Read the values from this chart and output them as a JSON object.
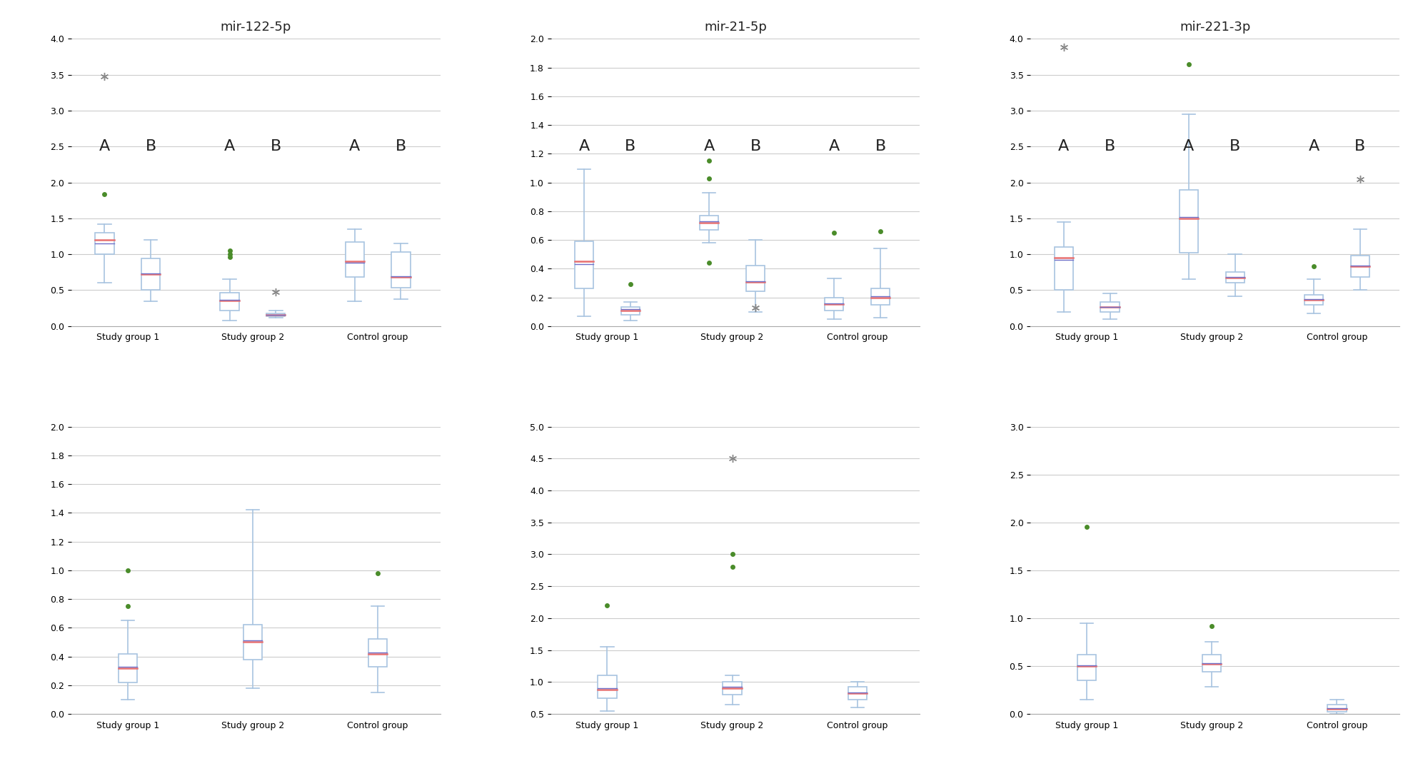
{
  "panels": [
    {
      "title": "mir-122-5p",
      "ylim": [
        0.0,
        4.0
      ],
      "yticks": [
        0.0,
        0.5,
        1.0,
        1.5,
        2.0,
        2.5,
        3.0,
        3.5,
        4.0
      ],
      "show_AB": true,
      "groups": [
        {
          "label": "Study group 1",
          "boxes": [
            {
              "name": "A",
              "q1": 1.0,
              "median": 1.2,
              "mean": 1.15,
              "q3": 1.3,
              "whislo": 0.6,
              "whishi": 1.42,
              "fliers_green": [
                1.84
              ],
              "fliers_gray": [
                3.48
              ]
            },
            {
              "name": "B",
              "q1": 0.5,
              "median": 0.72,
              "mean": 0.73,
              "q3": 0.94,
              "whislo": 0.35,
              "whishi": 1.2,
              "fliers_green": [],
              "fliers_gray": []
            }
          ]
        },
        {
          "label": "Study group 2",
          "boxes": [
            {
              "name": "A",
              "q1": 0.22,
              "median": 0.36,
              "mean": 0.37,
              "q3": 0.46,
              "whislo": 0.08,
              "whishi": 0.65,
              "fliers_green": [
                0.96,
                1.0,
                1.05
              ],
              "fliers_gray": []
            },
            {
              "name": "B",
              "q1": 0.135,
              "median": 0.155,
              "mean": 0.16,
              "q3": 0.175,
              "whislo": 0.115,
              "whishi": 0.22,
              "fliers_green": [],
              "fliers_gray": [
                0.47
              ]
            }
          ]
        },
        {
          "label": "Control group",
          "boxes": [
            {
              "name": "A",
              "q1": 0.68,
              "median": 0.9,
              "mean": 0.88,
              "q3": 1.17,
              "whislo": 0.35,
              "whishi": 1.35,
              "fliers_green": [],
              "fliers_gray": []
            },
            {
              "name": "B",
              "q1": 0.53,
              "median": 0.68,
              "mean": 0.69,
              "q3": 1.03,
              "whislo": 0.38,
              "whishi": 1.15,
              "fliers_green": [],
              "fliers_gray": []
            }
          ]
        }
      ]
    },
    {
      "title": "mir-21-5p",
      "ylim": [
        0.0,
        2.0
      ],
      "yticks": [
        0.0,
        0.2,
        0.4,
        0.6,
        0.8,
        1.0,
        1.2,
        1.4,
        1.6,
        1.8,
        2.0
      ],
      "show_AB": true,
      "groups": [
        {
          "label": "Study group 1",
          "boxes": [
            {
              "name": "A",
              "q1": 0.26,
              "median": 0.45,
              "mean": 0.43,
              "q3": 0.59,
              "whislo": 0.07,
              "whishi": 1.09,
              "fliers_green": [],
              "fliers_gray": []
            },
            {
              "name": "B",
              "q1": 0.08,
              "median": 0.11,
              "mean": 0.12,
              "q3": 0.135,
              "whislo": 0.04,
              "whishi": 0.17,
              "fliers_green": [
                0.29
              ],
              "fliers_gray": []
            }
          ]
        },
        {
          "label": "Study group 2",
          "boxes": [
            {
              "name": "A",
              "q1": 0.67,
              "median": 0.72,
              "mean": 0.73,
              "q3": 0.77,
              "whislo": 0.58,
              "whishi": 0.93,
              "fliers_green": [
                0.44,
                1.03,
                1.15
              ],
              "fliers_gray": []
            },
            {
              "name": "B",
              "q1": 0.24,
              "median": 0.305,
              "mean": 0.31,
              "q3": 0.42,
              "whislo": 0.1,
              "whishi": 0.6,
              "fliers_green": [],
              "fliers_gray": [
                0.13
              ]
            }
          ]
        },
        {
          "label": "Control group",
          "boxes": [
            {
              "name": "A",
              "q1": 0.11,
              "median": 0.155,
              "mean": 0.16,
              "q3": 0.2,
              "whislo": 0.05,
              "whishi": 0.33,
              "fliers_green": [
                0.65
              ],
              "fliers_gray": []
            },
            {
              "name": "B",
              "q1": 0.15,
              "median": 0.2,
              "mean": 0.21,
              "q3": 0.26,
              "whislo": 0.06,
              "whishi": 0.54,
              "fliers_green": [
                0.66
              ],
              "fliers_gray": []
            }
          ]
        }
      ]
    },
    {
      "title": "mir-221-3p",
      "ylim": [
        0.0,
        4.0
      ],
      "yticks": [
        0.0,
        0.5,
        1.0,
        1.5,
        2.0,
        2.5,
        3.0,
        3.5,
        4.0
      ],
      "show_AB": true,
      "groups": [
        {
          "label": "Study group 1",
          "boxes": [
            {
              "name": "A",
              "q1": 0.5,
              "median": 0.95,
              "mean": 0.92,
              "q3": 1.1,
              "whislo": 0.2,
              "whishi": 1.45,
              "fliers_green": [],
              "fliers_gray": [
                3.88
              ]
            },
            {
              "name": "B",
              "q1": 0.2,
              "median": 0.265,
              "mean": 0.27,
              "q3": 0.34,
              "whislo": 0.1,
              "whishi": 0.45,
              "fliers_green": [],
              "fliers_gray": []
            }
          ]
        },
        {
          "label": "Study group 2",
          "boxes": [
            {
              "name": "A",
              "q1": 1.02,
              "median": 1.5,
              "mean": 1.52,
              "q3": 1.9,
              "whislo": 0.65,
              "whishi": 2.95,
              "fliers_green": [
                3.65
              ],
              "fliers_gray": []
            },
            {
              "name": "B",
              "q1": 0.6,
              "median": 0.67,
              "mean": 0.68,
              "q3": 0.75,
              "whislo": 0.42,
              "whishi": 1.0,
              "fliers_green": [],
              "fliers_gray": []
            }
          ]
        },
        {
          "label": "Control group",
          "boxes": [
            {
              "name": "A",
              "q1": 0.3,
              "median": 0.37,
              "mean": 0.38,
              "q3": 0.44,
              "whislo": 0.18,
              "whishi": 0.65,
              "fliers_green": [
                0.83
              ],
              "fliers_gray": []
            },
            {
              "name": "B",
              "q1": 0.68,
              "median": 0.83,
              "mean": 0.84,
              "q3": 0.98,
              "whislo": 0.5,
              "whishi": 1.35,
              "fliers_green": [],
              "fliers_gray": [
                2.05
              ]
            }
          ]
        }
      ]
    },
    {
      "title": "",
      "ylim": [
        0.0,
        2.0
      ],
      "yticks": [
        0.0,
        0.2,
        0.4,
        0.6,
        0.8,
        1.0,
        1.2,
        1.4,
        1.6,
        1.8,
        2.0
      ],
      "show_AB": false,
      "groups": [
        {
          "label": "Study group 1",
          "boxes": [
            {
              "name": "",
              "q1": 0.22,
              "median": 0.32,
              "mean": 0.33,
              "q3": 0.42,
              "whislo": 0.1,
              "whishi": 0.65,
              "fliers_green": [
                0.75,
                1.0
              ],
              "fliers_gray": []
            }
          ]
        },
        {
          "label": "Study group 2",
          "boxes": [
            {
              "name": "",
              "q1": 0.38,
              "median": 0.5,
              "mean": 0.51,
              "q3": 0.62,
              "whislo": 0.18,
              "whishi": 1.42,
              "fliers_green": [],
              "fliers_gray": []
            }
          ]
        },
        {
          "label": "Control group",
          "boxes": [
            {
              "name": "",
              "q1": 0.33,
              "median": 0.42,
              "mean": 0.43,
              "q3": 0.52,
              "whislo": 0.15,
              "whishi": 0.75,
              "fliers_green": [
                0.98
              ],
              "fliers_gray": []
            }
          ]
        }
      ]
    },
    {
      "title": "",
      "ylim": [
        0.5,
        5.0
      ],
      "yticks": [
        0.5,
        1.0,
        1.5,
        2.0,
        2.5,
        3.0,
        3.5,
        4.0,
        4.5,
        5.0
      ],
      "show_AB": false,
      "groups": [
        {
          "label": "Study group 1",
          "boxes": [
            {
              "name": "",
              "q1": 0.75,
              "median": 0.88,
              "mean": 0.9,
              "q3": 1.1,
              "whislo": 0.55,
              "whishi": 1.55,
              "fliers_green": [
                2.2
              ],
              "fliers_gray": []
            }
          ]
        },
        {
          "label": "Study group 2",
          "boxes": [
            {
              "name": "",
              "q1": 0.8,
              "median": 0.9,
              "mean": 0.92,
              "q3": 1.0,
              "whislo": 0.65,
              "whishi": 1.1,
              "fliers_green": [
                2.8,
                3.0
              ],
              "fliers_gray": [
                4.5
              ]
            }
          ]
        },
        {
          "label": "Control group",
          "boxes": [
            {
              "name": "",
              "q1": 0.72,
              "median": 0.82,
              "mean": 0.84,
              "q3": 0.92,
              "whislo": 0.6,
              "whishi": 1.0,
              "fliers_green": [],
              "fliers_gray": []
            }
          ]
        }
      ]
    },
    {
      "title": "",
      "ylim": [
        0.0,
        3.0
      ],
      "yticks": [
        0.0,
        0.5,
        1.0,
        1.5,
        2.0,
        2.5,
        3.0
      ],
      "show_AB": false,
      "groups": [
        {
          "label": "Study group 1",
          "boxes": [
            {
              "name": "",
              "q1": 0.35,
              "median": 0.5,
              "mean": 0.51,
              "q3": 0.62,
              "whislo": 0.15,
              "whishi": 0.95,
              "fliers_green": [
                1.95
              ],
              "fliers_gray": []
            }
          ]
        },
        {
          "label": "Study group 2",
          "boxes": [
            {
              "name": "",
              "q1": 0.44,
              "median": 0.52,
              "mean": 0.53,
              "q3": 0.62,
              "whislo": 0.28,
              "whishi": 0.75,
              "fliers_green": [
                0.92
              ],
              "fliers_gray": []
            }
          ]
        },
        {
          "label": "Control group",
          "boxes": [
            {
              "name": "",
              "q1": 0.02,
              "median": 0.05,
              "mean": 0.06,
              "q3": 0.1,
              "whislo": 0.0,
              "whishi": 0.15,
              "fliers_green": [],
              "fliers_gray": []
            }
          ]
        }
      ]
    }
  ],
  "box_color": "#a8c4e0",
  "median_color": "#e87070",
  "mean_color": "#7070c8",
  "whisker_color": "#a8c4e0",
  "flier_green": "#4a8c2a",
  "flier_gray": "#888888",
  "bg_color": "#ffffff",
  "grid_color": "#cccccc",
  "text_color": "#222222",
  "AB_fontsize": 16,
  "title_fontsize": 13,
  "tick_fontsize": 9,
  "label_fontsize": 9
}
